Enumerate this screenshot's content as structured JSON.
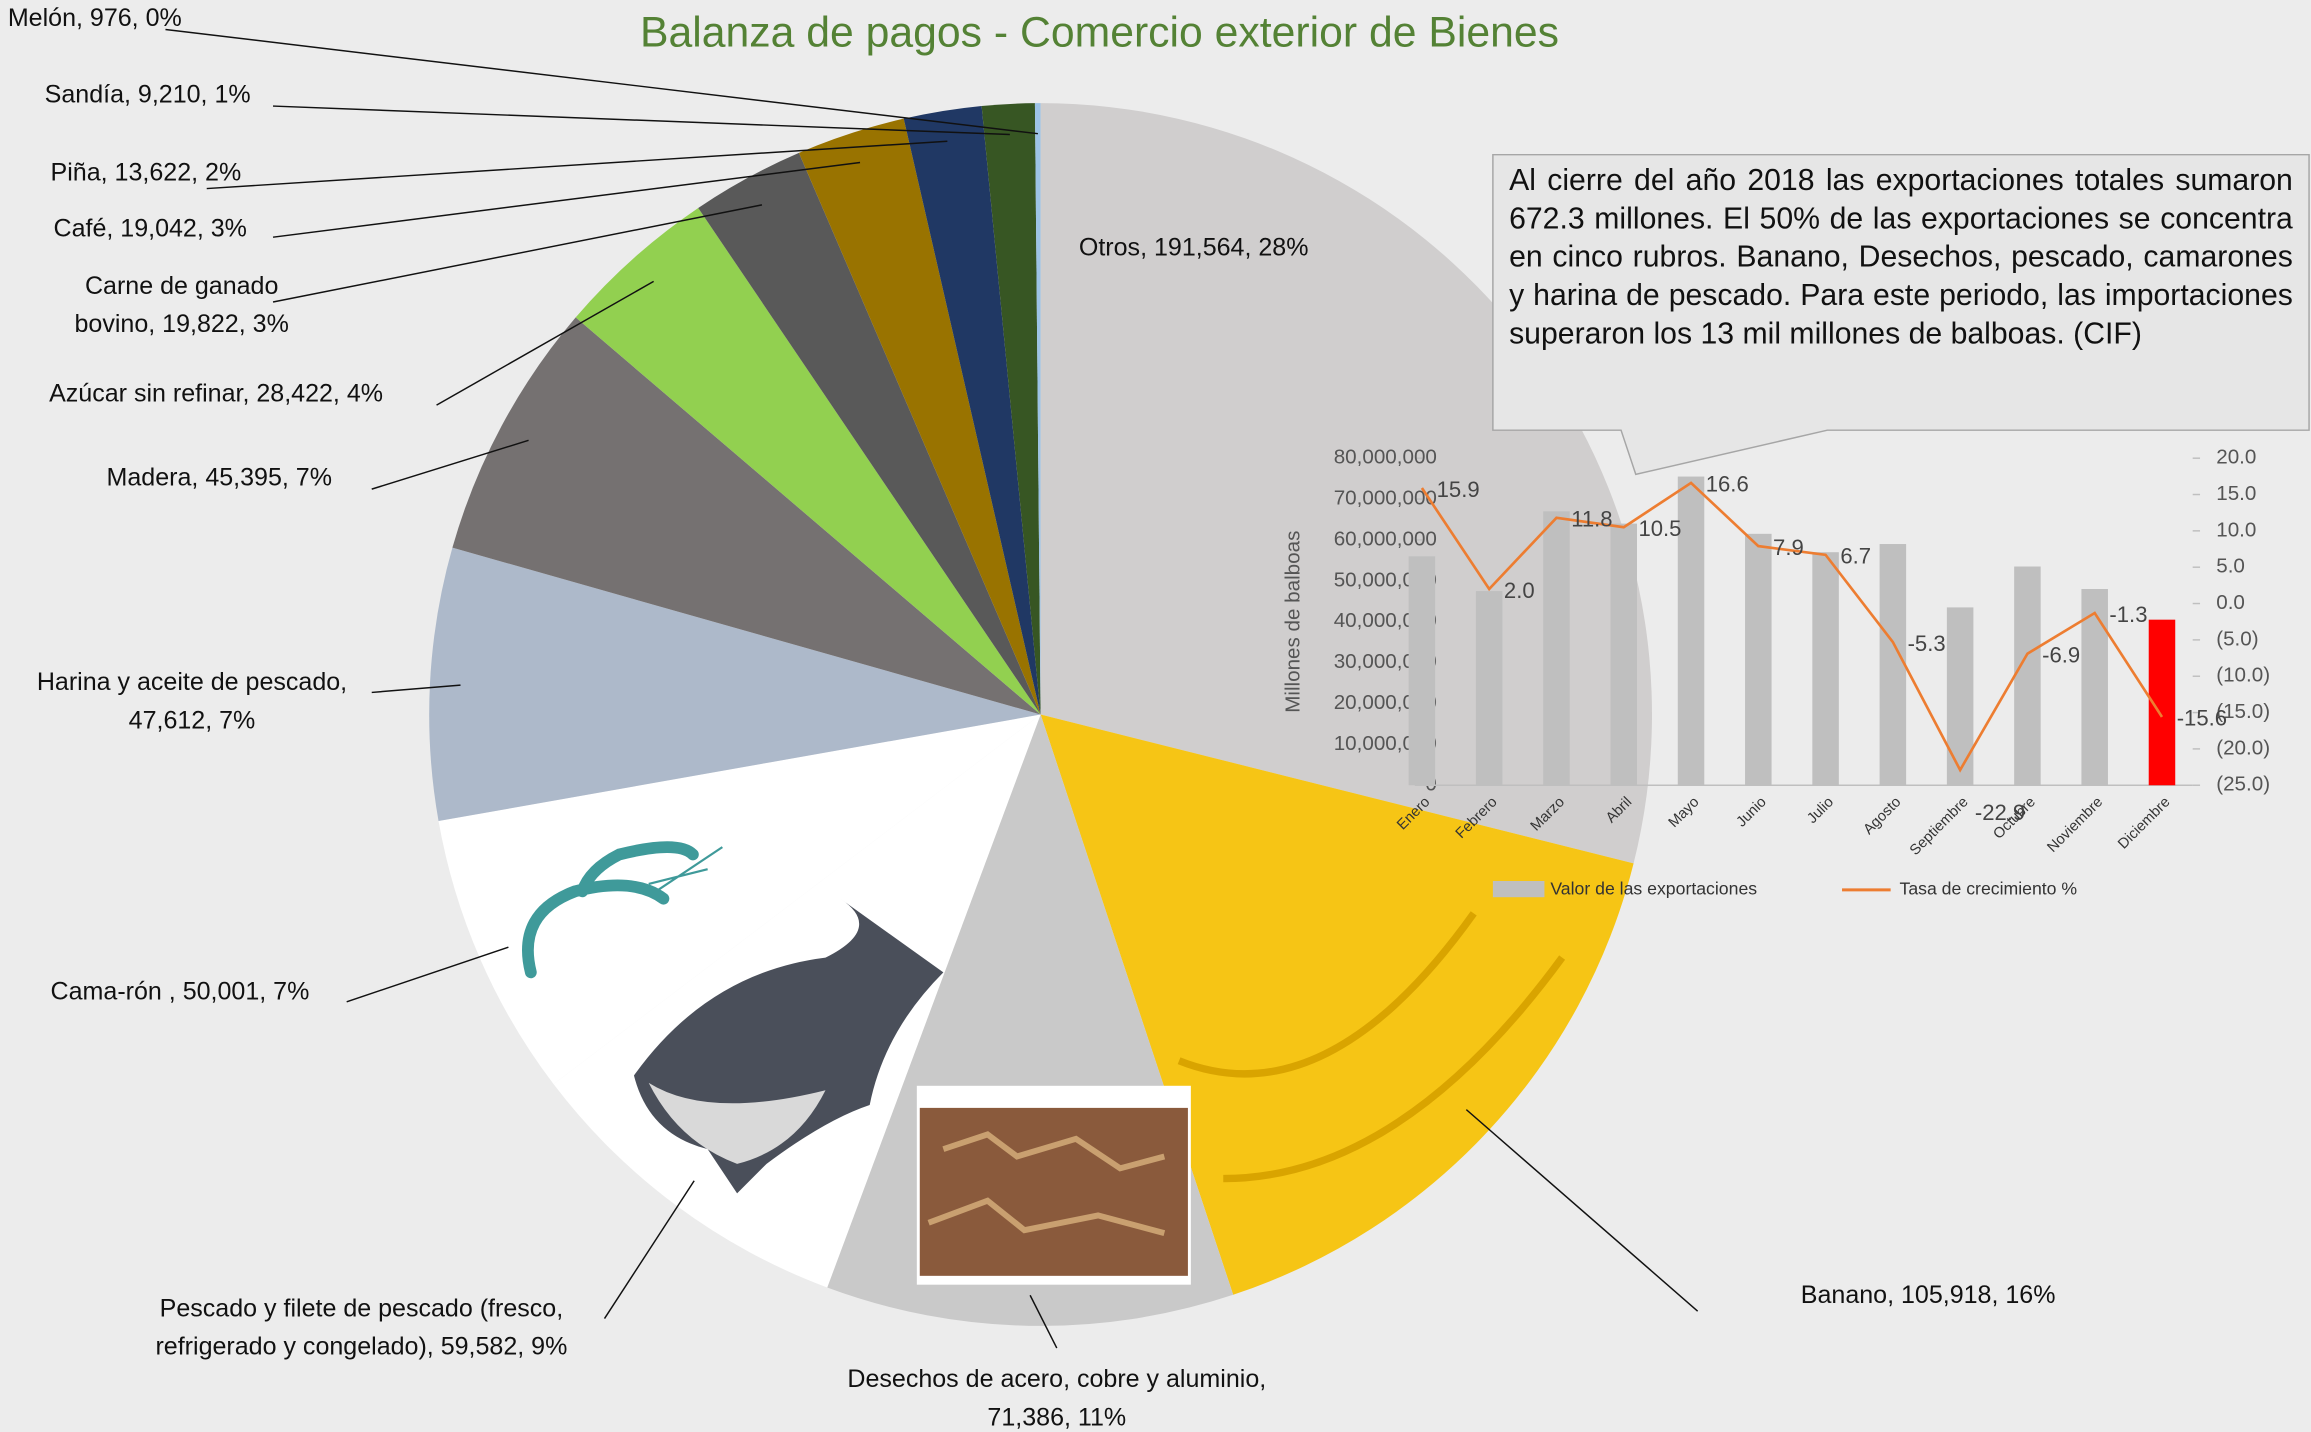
{
  "chart_data": [
    {
      "type": "pie",
      "title": "Balanza de pagos - Comercio exterior de Bienes",
      "values": [
        191564,
        105918,
        71386,
        59582,
        50001,
        47612,
        45395,
        28422,
        19822,
        19042,
        13622,
        9210,
        976
      ],
      "value_labels": [
        [
          "Otros, 191,564, 28%"
        ],
        [
          "Banano, 105,918, 16%"
        ],
        [
          "Desechos de acero, cobre y aluminio,",
          "71,386, 11%"
        ],
        [
          "Pescado y filete de pescado (fresco,",
          "refrigerado y congelado), 59,582, 9%"
        ],
        [
          "Cama-rón , 50,001, 7%"
        ],
        [
          "Harina y aceite de pescado,",
          "47,612, 7%"
        ],
        [
          "Madera, 45,395, 7%"
        ],
        [
          "Azúcar sin refinar, 28,422, 4%"
        ],
        [
          "Carne de ganado",
          "bovino, 19,822, 3%"
        ],
        [
          "Café, 19,042, 3%"
        ],
        [
          "Piña, 13,622, 2%"
        ],
        [
          "Sandía, 9,210, 1%"
        ],
        [
          "Melón, 976, 0%"
        ]
      ],
      "colors": [
        "#d0cece",
        "#f6c515",
        "#c9c9c9",
        "#ffffff",
        "#ffffff",
        "#adb9ca",
        "#757171",
        "#92d050",
        "#595959",
        "#997300",
        "#203864",
        "#375623",
        "#9dc3e6"
      ]
    },
    {
      "type": "combo",
      "annotation": "Al cierre del año 2018 las exportaciones totales sumaron 672.3 millones. El 50% de las exportaciones se concentra en cinco rubros. Banano, Desechos, pescado, camarones y harina de pescado. Para este periodo, las importaciones superaron los 13 mil millones de balboas. (CIF)",
      "y_label": "Millones de balboas",
      "categories": [
        "Enero",
        "Febrero",
        "Marzo",
        "Abril",
        "Mayo",
        "Junio",
        "Julio",
        "Agosto",
        "Septiembre",
        "Octubre",
        "Noviembre",
        "Diciembre"
      ],
      "ylim": [
        0,
        80000000
      ],
      "yticks": [
        {
          "value": 0,
          "label": "0"
        },
        {
          "value": 10000000,
          "label": "10,000,000"
        },
        {
          "value": 20000000,
          "label": "20,000,000"
        },
        {
          "value": 30000000,
          "label": "30,000,000"
        },
        {
          "value": 40000000,
          "label": "40,000,000"
        },
        {
          "value": 50000000,
          "label": "50,000,000"
        },
        {
          "value": 60000000,
          "label": "60,000,000"
        },
        {
          "value": 70000000,
          "label": "70,000,000"
        },
        {
          "value": 80000000,
          "label": "80,000,000"
        }
      ],
      "y2lim": [
        -25,
        20
      ],
      "y2ticks": [
        {
          "value": 20,
          "label": "20.0"
        },
        {
          "value": 15,
          "label": "15.0"
        },
        {
          "value": 10,
          "label": "10.0"
        },
        {
          "value": 5,
          "label": "5.0"
        },
        {
          "value": 0,
          "label": "0.0"
        },
        {
          "value": -5,
          "label": "(5.0)"
        },
        {
          "value": -10,
          "label": "(10.0)"
        },
        {
          "value": -15,
          "label": "(15.0)"
        },
        {
          "value": -20,
          "label": "(20.0)"
        },
        {
          "value": -25,
          "label": "(25.0)"
        }
      ],
      "y2_negative_color": "#ff0000",
      "series": [
        {
          "name": "Valor de las exportaciones",
          "type": "bar",
          "color": "#bfbfbf",
          "colors": [
            "#bfbfbf",
            "#bfbfbf",
            "#bfbfbf",
            "#bfbfbf",
            "#bfbfbf",
            "#bfbfbf",
            "#bfbfbf",
            "#bfbfbf",
            "#bfbfbf",
            "#bfbfbf",
            "#bfbfbf",
            "#ff0000"
          ],
          "values": [
            56000000,
            47500000,
            67000000,
            64000000,
            75500000,
            61500000,
            57000000,
            59000000,
            43500000,
            53500000,
            48000000,
            40500000
          ]
        },
        {
          "name": "Tasa de crecimiento %",
          "type": "line",
          "axis": "y2",
          "color": "#ed7d31",
          "values": [
            15.9,
            2.0,
            11.8,
            10.5,
            16.6,
            7.9,
            6.7,
            -5.3,
            -22.9,
            -6.9,
            -1.3,
            -15.6
          ],
          "value_labels": [
            "15.9",
            "2.0",
            "11.8",
            "10.5",
            "16.6",
            "7.9",
            "6.7",
            "-5.3",
            "-22.9",
            "-6.9",
            "-1.3",
            "-15.6"
          ]
        }
      ]
    }
  ]
}
